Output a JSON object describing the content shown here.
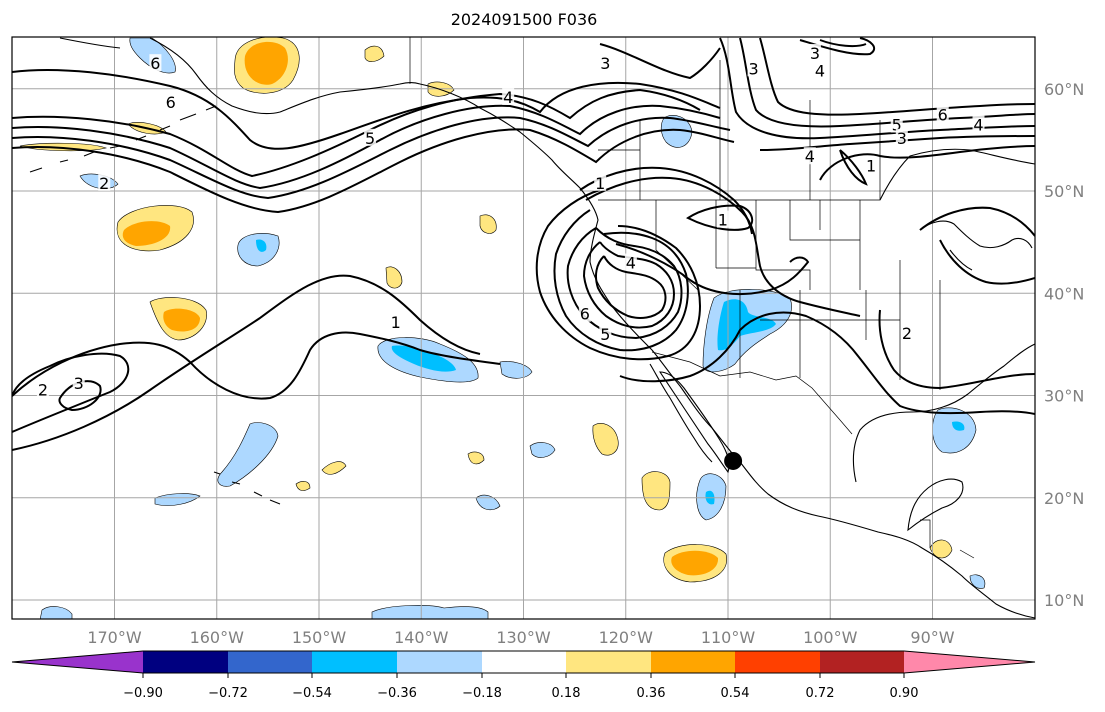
{
  "title": "2024091500 F036",
  "map": {
    "lon_range": [
      -180,
      -80
    ],
    "lat_range": [
      7,
      64
    ],
    "lon_ticks": [
      {
        "value": -170,
        "label": "170°W"
      },
      {
        "value": -160,
        "label": "160°W"
      },
      {
        "value": -150,
        "label": "150°W"
      },
      {
        "value": -140,
        "label": "140°W"
      },
      {
        "value": -130,
        "label": "130°W"
      },
      {
        "value": -120,
        "label": "120°W"
      },
      {
        "value": -110,
        "label": "110°W"
      },
      {
        "value": -100,
        "label": "100°W"
      },
      {
        "value": -90,
        "label": "90°W"
      }
    ],
    "lat_ticks": [
      {
        "value": 60,
        "label": "60°N"
      },
      {
        "value": 50,
        "label": "50°N"
      },
      {
        "value": 40,
        "label": "40°N"
      },
      {
        "value": 30,
        "label": "30°N"
      },
      {
        "value": 20,
        "label": "20°N"
      },
      {
        "value": 10,
        "label": "10°N"
      }
    ],
    "marker": {
      "lon": -109.5,
      "lat": 23.6,
      "color": "#000000"
    },
    "contour_labels": [
      {
        "text": "6",
        "lon": -166,
        "lat": 62.5
      },
      {
        "text": "6",
        "lon": -164.5,
        "lat": 58.7
      },
      {
        "text": "5",
        "lon": -145,
        "lat": 55.2
      },
      {
        "text": "2",
        "lon": -171,
        "lat": 50.8
      },
      {
        "text": "3",
        "lon": -122,
        "lat": 62.5
      },
      {
        "text": "4",
        "lon": -131.5,
        "lat": 59.2
      },
      {
        "text": "3",
        "lon": -101.5,
        "lat": 63.5
      },
      {
        "text": "3",
        "lon": -107.5,
        "lat": 62
      },
      {
        "text": "4",
        "lon": -101,
        "lat": 61.8
      },
      {
        "text": "6",
        "lon": -89,
        "lat": 57.5
      },
      {
        "text": "5",
        "lon": -93.5,
        "lat": 56.5
      },
      {
        "text": "3",
        "lon": -93,
        "lat": 55.2
      },
      {
        "text": "4",
        "lon": -85.5,
        "lat": 56.5
      },
      {
        "text": "1",
        "lon": -96,
        "lat": 52.5
      },
      {
        "text": "4",
        "lon": -102,
        "lat": 53.4
      },
      {
        "text": "1",
        "lon": -122.5,
        "lat": 50.8
      },
      {
        "text": "1",
        "lon": -110.5,
        "lat": 47.2
      },
      {
        "text": "4",
        "lon": -119.5,
        "lat": 43
      },
      {
        "text": "6",
        "lon": -124,
        "lat": 38
      },
      {
        "text": "5",
        "lon": -122,
        "lat": 36
      },
      {
        "text": "1",
        "lon": -142.5,
        "lat": 37.2
      },
      {
        "text": "2",
        "lon": -177,
        "lat": 30.6
      },
      {
        "text": "3",
        "lon": -173.5,
        "lat": 31.2
      },
      {
        "text": "2",
        "lon": -92.5,
        "lat": 36.1
      }
    ]
  },
  "colorbar": {
    "colors": [
      "#9933cc",
      "#000080",
      "#3366cc",
      "#00bfff",
      "#add8ff",
      "#ffffff",
      "#ffe680",
      "#ffa500",
      "#ff4000",
      "#b22222",
      "#ff88aa"
    ],
    "ticks": [
      "−0.90",
      "−0.72",
      "−0.54",
      "−0.36",
      "−0.18",
      "0.18",
      "0.36",
      "0.54",
      "0.72",
      "0.90"
    ]
  }
}
